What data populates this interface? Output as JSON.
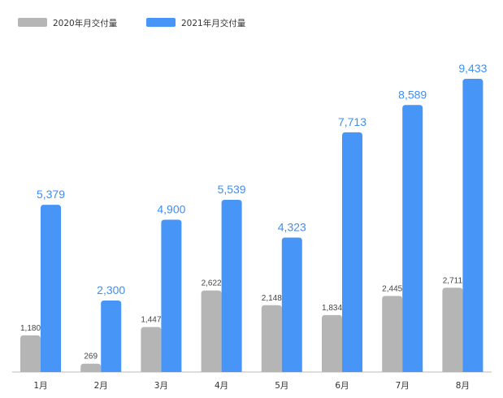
{
  "chart_data": {
    "type": "bar",
    "categories": [
      "1月",
      "2月",
      "3月",
      "4月",
      "5月",
      "6月",
      "7月",
      "8月"
    ],
    "series": [
      {
        "name": "2020年月交付量",
        "color": "#b5b5b5",
        "values": [
          1180,
          269,
          1447,
          2622,
          2148,
          1834,
          2445,
          2711
        ],
        "labels": [
          "1,180",
          "269",
          "1,447",
          "2,622",
          "2,148",
          "1,834",
          "2,445",
          "2,711"
        ]
      },
      {
        "name": "2021年月交付量",
        "color": "#4796f7",
        "values": [
          5379,
          2300,
          4900,
          5539,
          4323,
          7713,
          8589,
          9433
        ],
        "labels": [
          "5,379",
          "2,300",
          "4,900",
          "5,539",
          "4,323",
          "7,713",
          "8,589",
          "9,433"
        ]
      }
    ],
    "legend_position": "top-left",
    "grid": false,
    "ylim": [
      0,
      9433
    ]
  }
}
